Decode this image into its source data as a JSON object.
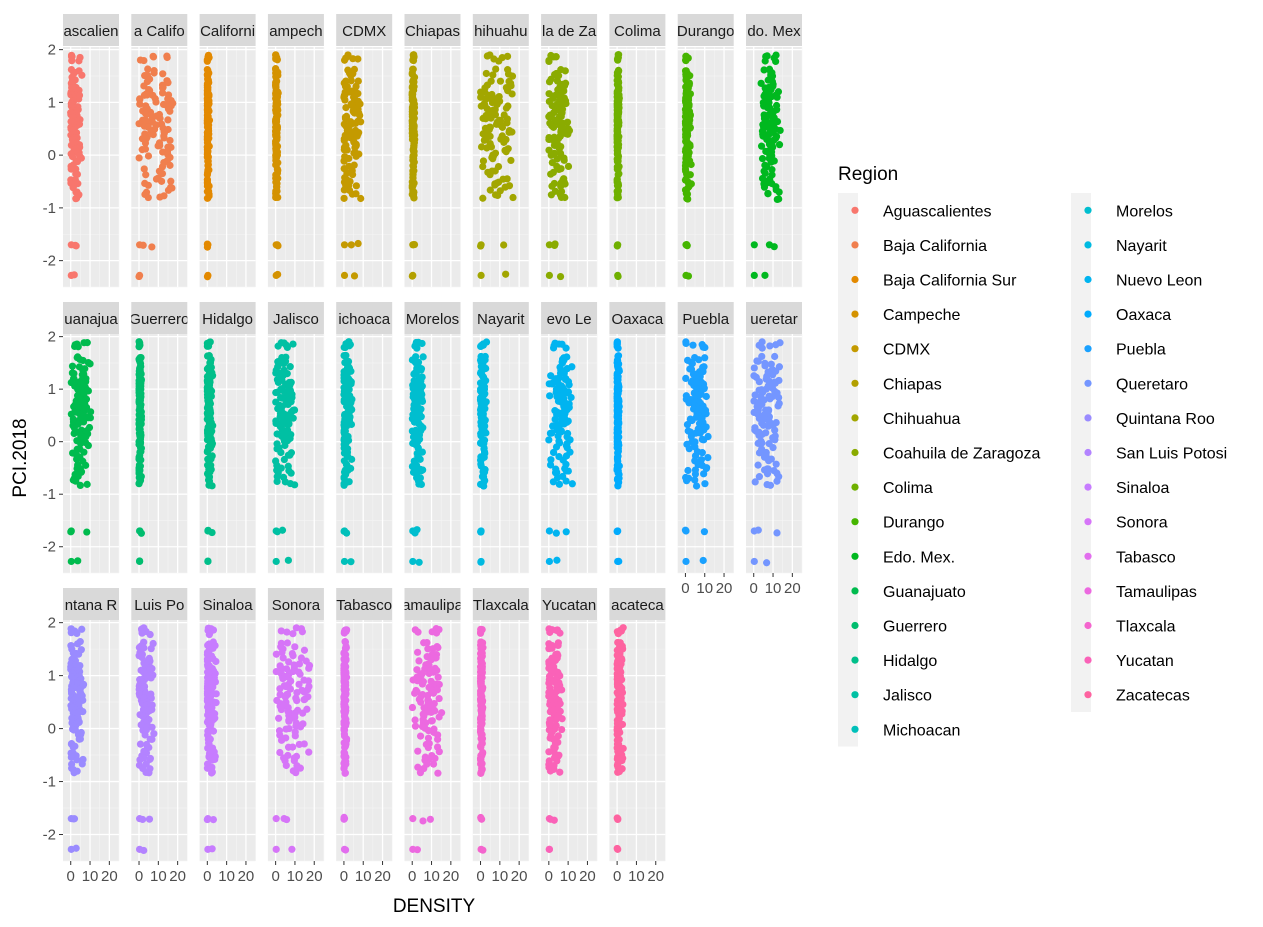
{
  "chart_data": {
    "type": "scatter",
    "facet_wrap": true,
    "xlabel": "DENSITY",
    "ylabel": "PCI.2018",
    "xlim": [
      -4,
      25
    ],
    "ylim": [
      -2.5,
      2.05
    ],
    "x_ticks": [
      "0",
      "10",
      "20"
    ],
    "y_ticks": [
      "-2",
      "-1",
      "0",
      "1",
      "2"
    ],
    "grid": true,
    "legend_position": "right",
    "legend_title": "Region",
    "panels": [
      {
        "label": "ascalien",
        "region": "Aguascalientes",
        "color": "#F8766D",
        "x_center": 1.8,
        "x_spread": 3.5
      },
      {
        "label": "a Califo",
        "region": "Baja California",
        "color": "#F07F4E",
        "x_center": 8.5,
        "x_spread": 9.5
      },
      {
        "label": "Californi",
        "region": "Baja California Sur",
        "color": "#E38900",
        "x_center": 0.3,
        "x_spread": 0.8
      },
      {
        "label": "ampech",
        "region": "Campeche",
        "color": "#D49200",
        "x_center": 0.4,
        "x_spread": 0.9
      },
      {
        "label": "CDMX",
        "region": "CDMX",
        "color": "#C49A00",
        "x_center": 3.2,
        "x_spread": 5.0
      },
      {
        "label": "Chiapas",
        "region": "Chiapas",
        "color": "#B3A000",
        "x_center": 0.4,
        "x_spread": 0.9
      },
      {
        "label": "hihuahu",
        "region": "Chihuahua",
        "color": "#A2A600",
        "x_center": 8.0,
        "x_spread": 8.5
      },
      {
        "label": "la de Za",
        "region": "Coahuila de Zaragoza",
        "color": "#8AAB00",
        "x_center": 5.0,
        "x_spread": 5.5
      },
      {
        "label": "Colima",
        "region": "Colima",
        "color": "#6FB000",
        "x_center": 0.3,
        "x_spread": 0.8
      },
      {
        "label": "Durango",
        "region": "Durango",
        "color": "#45B500",
        "x_center": 1.0,
        "x_spread": 2.0
      },
      {
        "label": "do. Mex",
        "region": "Edo. Mex.",
        "color": "#00B81F",
        "x_center": 8.5,
        "x_spread": 4.5
      },
      {
        "label": "uanajua",
        "region": "Guanajuato",
        "color": "#00BB4E",
        "x_center": 5.0,
        "x_spread": 5.0
      },
      {
        "label": "Guerrero",
        "region": "Guerrero",
        "color": "#00BD6E",
        "x_center": 0.4,
        "x_spread": 0.8
      },
      {
        "label": "Hidalgo",
        "region": "Hidalgo",
        "color": "#00BF8A",
        "x_center": 1.0,
        "x_spread": 1.8
      },
      {
        "label": "Jalisco",
        "region": "Jalisco",
        "color": "#00C0A3",
        "x_center": 4.5,
        "x_spread": 5.0
      },
      {
        "label": "ichoaca",
        "region": "Michoacan",
        "color": "#00C0BA",
        "x_center": 1.5,
        "x_spread": 2.5
      },
      {
        "label": "Morelos",
        "region": "Morelos",
        "color": "#00BECF",
        "x_center": 2.5,
        "x_spread": 3.0
      },
      {
        "label": "Nayarit",
        "region": "Nayarit",
        "color": "#00BAE1",
        "x_center": 1.0,
        "x_spread": 2.0
      },
      {
        "label": "evo Le",
        "region": "Nuevo Leon",
        "color": "#00B4F0",
        "x_center": 6.0,
        "x_spread": 6.0
      },
      {
        "label": "Oaxaca",
        "region": "Oaxaca",
        "color": "#00ABFD",
        "x_center": 0.3,
        "x_spread": 0.8
      },
      {
        "label": "Puebla",
        "region": "Puebla",
        "color": "#1AA1FF",
        "x_center": 5.5,
        "x_spread": 6.0
      },
      {
        "label": "ueretar",
        "region": "Queretaro",
        "color": "#7496FF",
        "x_center": 6.5,
        "x_spread": 6.5
      },
      {
        "label": "ntana R",
        "region": "Quintana Roo",
        "color": "#9A8BFF",
        "x_center": 2.5,
        "x_spread": 4.0
      },
      {
        "label": "Luis Po",
        "region": "San Luis Potosi",
        "color": "#B383FF",
        "x_center": 3.5,
        "x_spread": 4.0
      },
      {
        "label": "Sinaloa",
        "region": "Sinaloa",
        "color": "#C77CFF",
        "x_center": 1.5,
        "x_spread": 3.0
      },
      {
        "label": "Sonora",
        "region": "Sonora",
        "color": "#D675F8",
        "x_center": 9.0,
        "x_spread": 9.0
      },
      {
        "label": "Tabasco",
        "region": "Tabasco",
        "color": "#E26EEE",
        "x_center": 0.4,
        "x_spread": 0.9
      },
      {
        "label": "amaulipa",
        "region": "Tamaulipas",
        "color": "#EC69E0",
        "x_center": 7.5,
        "x_spread": 7.0
      },
      {
        "label": "Tlaxcala",
        "region": "Tlaxcala",
        "color": "#F465CE",
        "x_center": 0.4,
        "x_spread": 0.9
      },
      {
        "label": "Yucatan",
        "region": "Yucatan",
        "color": "#FA62B8",
        "x_center": 2.5,
        "x_spread": 4.0
      },
      {
        "label": "acateca",
        "region": "Zacatecas",
        "color": "#FE63A0",
        "x_center": 1.0,
        "x_spread": 2.0
      }
    ],
    "legend_entries": [
      {
        "label": "Aguascalientes",
        "color": "#F8766D"
      },
      {
        "label": "Baja California",
        "color": "#F07F4E"
      },
      {
        "label": "Baja California Sur",
        "color": "#E38900"
      },
      {
        "label": "Campeche",
        "color": "#D49200"
      },
      {
        "label": "CDMX",
        "color": "#C49A00"
      },
      {
        "label": "Chiapas",
        "color": "#B3A000"
      },
      {
        "label": "Chihuahua",
        "color": "#A2A600"
      },
      {
        "label": "Coahuila de Zaragoza",
        "color": "#8AAB00"
      },
      {
        "label": "Colima",
        "color": "#6FB000"
      },
      {
        "label": "Durango",
        "color": "#45B500"
      },
      {
        "label": "Edo. Mex.",
        "color": "#00B81F"
      },
      {
        "label": "Guanajuato",
        "color": "#00BB4E"
      },
      {
        "label": "Guerrero",
        "color": "#00BD6E"
      },
      {
        "label": "Hidalgo",
        "color": "#00BF8A"
      },
      {
        "label": "Jalisco",
        "color": "#00C0A3"
      },
      {
        "label": "Michoacan",
        "color": "#00C0BA"
      },
      {
        "label": "Morelos",
        "color": "#00BECF"
      },
      {
        "label": "Nayarit",
        "color": "#00BAE1"
      },
      {
        "label": "Nuevo Leon",
        "color": "#00B4F0"
      },
      {
        "label": "Oaxaca",
        "color": "#00ABFD"
      },
      {
        "label": "Puebla",
        "color": "#1AA1FF"
      },
      {
        "label": "Queretaro",
        "color": "#7496FF"
      },
      {
        "label": "Quintana Roo",
        "color": "#9A8BFF"
      },
      {
        "label": "San Luis Potosi",
        "color": "#B383FF"
      },
      {
        "label": "Sinaloa",
        "color": "#C77CFF"
      },
      {
        "label": "Sonora",
        "color": "#D675F8"
      },
      {
        "label": "Tabasco",
        "color": "#E26EEE"
      },
      {
        "label": "Tamaulipas",
        "color": "#EC69E0"
      },
      {
        "label": "Tlaxcala",
        "color": "#F465CE"
      },
      {
        "label": "Yucatan",
        "color": "#FA62B8"
      },
      {
        "label": "Zacatecas",
        "color": "#FE63A0"
      }
    ],
    "pci_values": [
      1.88,
      1.85,
      1.8,
      1.62,
      1.55,
      1.5,
      1.42,
      1.38,
      1.32,
      1.28,
      1.22,
      1.18,
      1.15,
      1.12,
      1.08,
      1.05,
      1.02,
      0.98,
      0.95,
      0.92,
      0.88,
      0.85,
      0.82,
      0.78,
      0.75,
      0.72,
      0.68,
      0.65,
      0.62,
      0.58,
      0.55,
      0.52,
      0.48,
      0.45,
      0.42,
      0.38,
      0.35,
      0.32,
      0.28,
      0.22,
      0.18,
      0.15,
      0.1,
      0.05,
      0.0,
      -0.05,
      -0.12,
      -0.2,
      -0.28,
      -0.35,
      -0.45,
      -0.52,
      -0.55,
      -0.6,
      -0.68,
      -0.75,
      -0.82,
      -1.7,
      -1.72,
      -2.28
    ]
  }
}
